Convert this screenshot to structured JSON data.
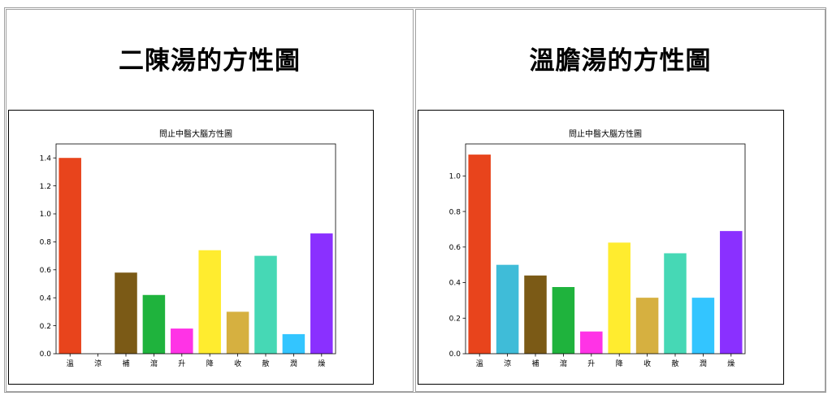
{
  "panels": [
    {
      "title": "二陳湯的方性圖"
    },
    {
      "title": "溫膽湯的方性圖"
    }
  ],
  "chart_data": [
    {
      "type": "bar",
      "title": "問止中醫大腦方性圖",
      "categories": [
        "溫",
        "涼",
        "補",
        "瀉",
        "升",
        "降",
        "收",
        "散",
        "潤",
        "燥"
      ],
      "values": [
        1.4,
        0,
        0.58,
        0.42,
        0.18,
        0.74,
        0.3,
        0.7,
        0.14,
        0.86
      ],
      "ylim": [
        0,
        1.5
      ],
      "yticks": [
        "0.0",
        "0.2",
        "0.4",
        "0.6",
        "0.8",
        "1.0",
        "1.2",
        "1.4"
      ],
      "ytick_values": [
        0,
        0.2,
        0.4,
        0.6,
        0.8,
        1.0,
        1.2,
        1.4
      ],
      "colors": [
        "#e8441c",
        "#3fbcd8",
        "#7b5a16",
        "#1fb33d",
        "#ff33e6",
        "#ffec2f",
        "#d6b040",
        "#46d8b5",
        "#33c5ff",
        "#8a30ff"
      ],
      "xlabel": "",
      "ylabel": ""
    },
    {
      "type": "bar",
      "title": "問止中醫大腦方性圖",
      "categories": [
        "溫",
        "涼",
        "補",
        "瀉",
        "升",
        "降",
        "收",
        "散",
        "潤",
        "燥"
      ],
      "values": [
        1.12,
        0.5,
        0.44,
        0.375,
        0.125,
        0.625,
        0.315,
        0.565,
        0.315,
        0.69
      ],
      "ylim": [
        0,
        1.18
      ],
      "yticks": [
        "0.0",
        "0.2",
        "0.4",
        "0.6",
        "0.8",
        "1.0"
      ],
      "ytick_values": [
        0,
        0.2,
        0.4,
        0.6,
        0.8,
        1.0
      ],
      "colors": [
        "#e8441c",
        "#3fbcd8",
        "#7b5a16",
        "#1fb33d",
        "#ff33e6",
        "#ffec2f",
        "#d6b040",
        "#46d8b5",
        "#33c5ff",
        "#8a30ff"
      ],
      "xlabel": "",
      "ylabel": ""
    }
  ]
}
